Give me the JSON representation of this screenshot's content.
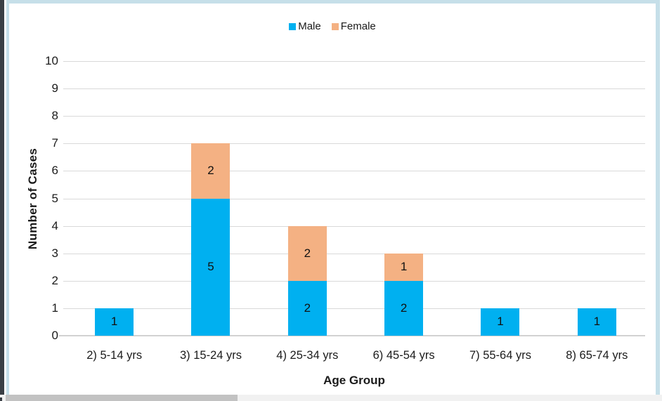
{
  "chart_data": {
    "type": "bar",
    "stacked": true,
    "title": "",
    "xlabel": "Age Group",
    "ylabel": "Number of Cases",
    "categories": [
      "2) 5-14 yrs",
      "3) 15-24 yrs",
      "4) 25-34 yrs",
      "6) 45-54 yrs",
      "7) 55-64 yrs",
      "8) 65-74 yrs"
    ],
    "series": [
      {
        "name": "Male",
        "color": "#00B0F0",
        "values": [
          1,
          5,
          2,
          2,
          1,
          1
        ]
      },
      {
        "name": "Female",
        "color": "#F4B183",
        "values": [
          0,
          2,
          2,
          1,
          0,
          0
        ]
      }
    ],
    "totals": [
      1,
      7,
      4,
      3,
      1,
      1
    ],
    "ylim": [
      0,
      10
    ],
    "ytick_step": 1,
    "grid": true,
    "legend_position": "top",
    "data_labels": true
  },
  "colors": {
    "gridline": "#d9d9d9",
    "axis_line": "#d2d2d2",
    "text": "#1b1b1b",
    "frame_border": "#c6dfe9",
    "window_edge": "#3a3f45",
    "scrollbar_track": "#f1f1f1",
    "scrollbar_thumb": "#c2c2c2"
  }
}
